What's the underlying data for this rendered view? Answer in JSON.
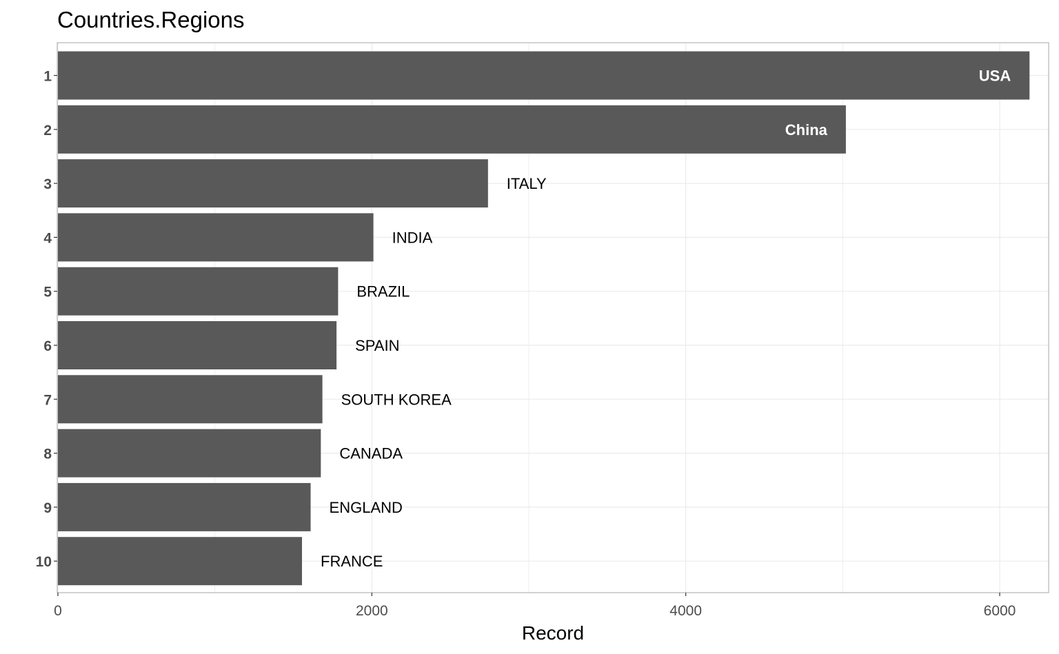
{
  "chart_data": {
    "type": "bar",
    "orientation": "horizontal",
    "title": "Countries.Regions",
    "xlabel": "Record",
    "ylabel": "",
    "xlim": [
      0,
      6300
    ],
    "x_ticks": [
      0,
      2000,
      4000,
      6000
    ],
    "x_tick_labels": [
      "0",
      "2000",
      "4000",
      "6000"
    ],
    "grid": true,
    "categories": [
      "1",
      "2",
      "3",
      "4",
      "5",
      "6",
      "7",
      "8",
      "9",
      "10"
    ],
    "labels": [
      "USA",
      "China",
      "ITALY",
      "INDIA",
      "BRAZIL",
      "SPAIN",
      "SOUTH KOREA",
      "CANADA",
      "ENGLAND",
      "FRANCE"
    ],
    "values": [
      6190,
      5020,
      2740,
      2010,
      1785,
      1775,
      1685,
      1675,
      1610,
      1555
    ],
    "bar_color": "#595959",
    "grid_color": "#ebebeb",
    "panel_border_color": "#b3b3b3"
  }
}
